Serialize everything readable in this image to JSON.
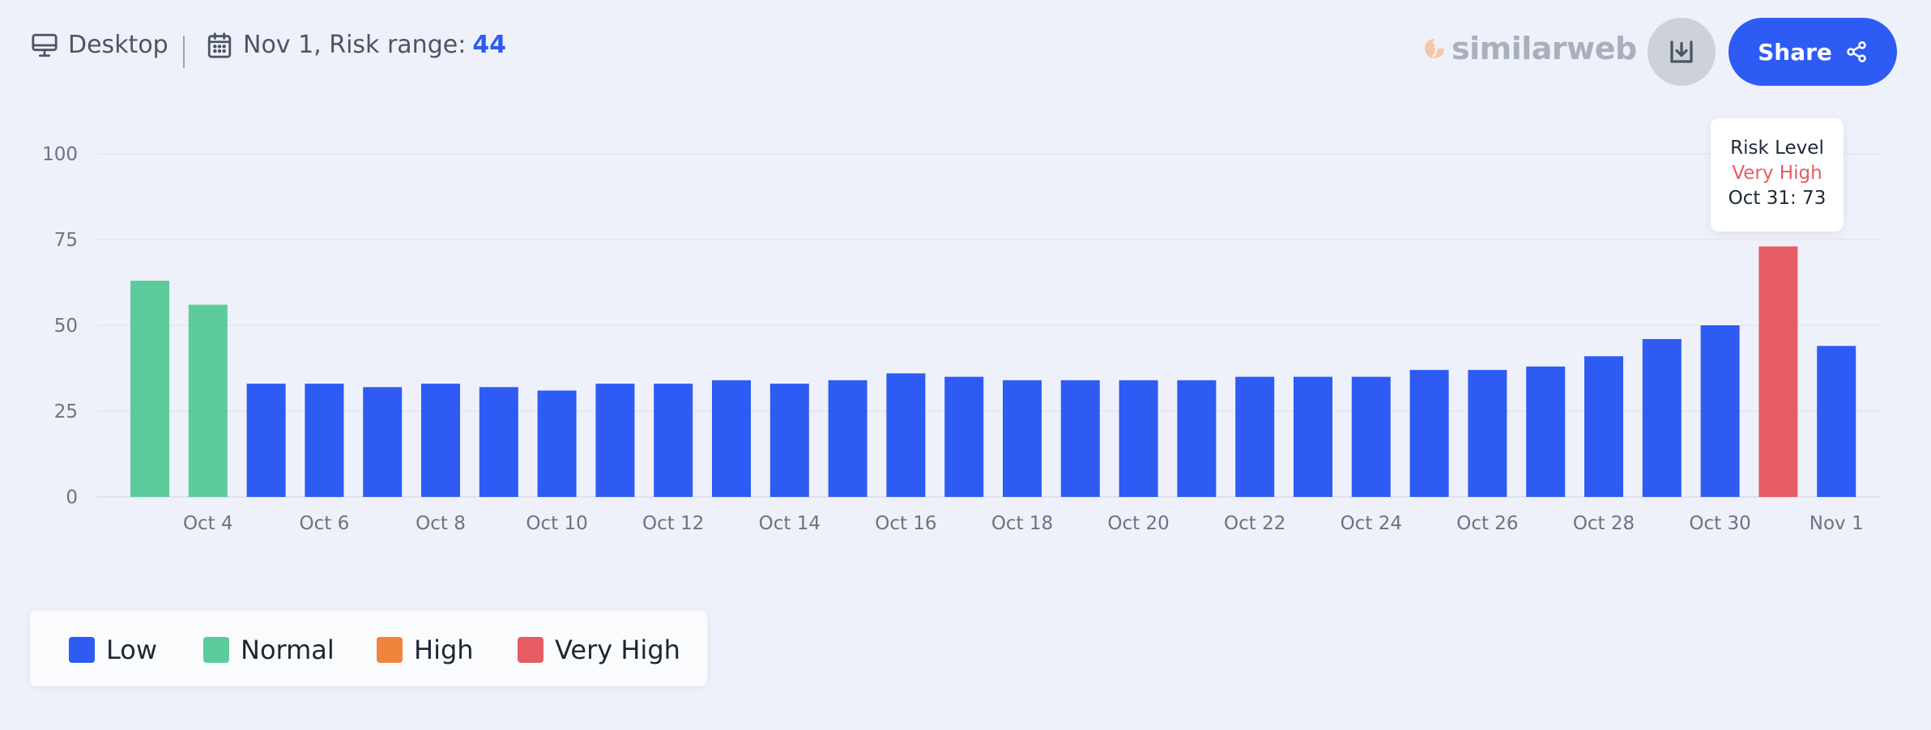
{
  "header": {
    "device_label": "Desktop",
    "date_label": "Nov 1, Risk range:",
    "risk_value": "44",
    "brand": "similarweb",
    "share_label": "Share"
  },
  "colors": {
    "low": "#2d5bf3",
    "normal": "#5ccb9b",
    "high": "#f0843c",
    "very_high": "#e65c63",
    "accent": "#2f5bf0"
  },
  "tooltip": {
    "title": "Risk Level",
    "level": "Very High",
    "value": "Oct 31: 73"
  },
  "legend": [
    {
      "label": "Low",
      "color": "#2d5bf3"
    },
    {
      "label": "Normal",
      "color": "#5ccb9b"
    },
    {
      "label": "High",
      "color": "#f0843c"
    },
    {
      "label": "Very High",
      "color": "#e65c63"
    }
  ],
  "chart_data": {
    "type": "bar",
    "categories": [
      "Oct 3",
      "Oct 4",
      "Oct 5",
      "Oct 6",
      "Oct 7",
      "Oct 8",
      "Oct 9",
      "Oct 10",
      "Oct 11",
      "Oct 12",
      "Oct 13",
      "Oct 14",
      "Oct 15",
      "Oct 16",
      "Oct 17",
      "Oct 18",
      "Oct 19",
      "Oct 20",
      "Oct 21",
      "Oct 22",
      "Oct 23",
      "Oct 24",
      "Oct 25",
      "Oct 26",
      "Oct 27",
      "Oct 28",
      "Oct 29",
      "Oct 30",
      "Oct 31",
      "Nov 1"
    ],
    "values": [
      63,
      56,
      33,
      33,
      32,
      33,
      32,
      31,
      33,
      33,
      34,
      33,
      34,
      36,
      35,
      34,
      34,
      34,
      34,
      35,
      35,
      35,
      37,
      37,
      38,
      41,
      46,
      50,
      73,
      44
    ],
    "levels": [
      "Normal",
      "Normal",
      "Low",
      "Low",
      "Low",
      "Low",
      "Low",
      "Low",
      "Low",
      "Low",
      "Low",
      "Low",
      "Low",
      "Low",
      "Low",
      "Low",
      "Low",
      "Low",
      "Low",
      "Low",
      "Low",
      "Low",
      "Low",
      "Low",
      "Low",
      "Low",
      "Low",
      "Low",
      "Very High",
      "Low"
    ],
    "x_tick_labels": [
      "Oct 4",
      "Oct 6",
      "Oct 8",
      "Oct 10",
      "Oct 12",
      "Oct 14",
      "Oct 16",
      "Oct 18",
      "Oct 20",
      "Oct 22",
      "Oct 24",
      "Oct 26",
      "Oct 28",
      "Oct 30",
      "Nov 1"
    ],
    "y_ticks": [
      0,
      25,
      50,
      75,
      100
    ],
    "ylim": [
      0,
      100
    ],
    "grid": true
  }
}
